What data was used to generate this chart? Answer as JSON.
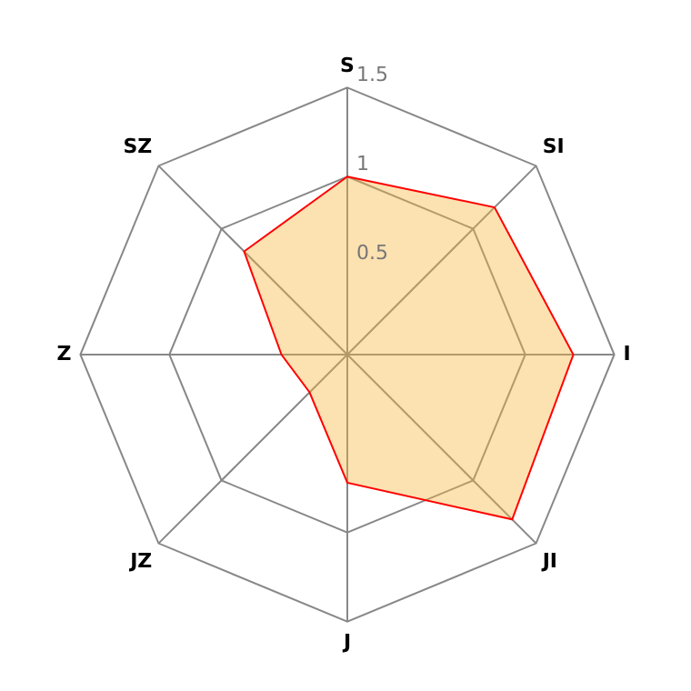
{
  "chart_data": {
    "type": "radar",
    "categories": [
      "S",
      "SI",
      "I",
      "JI",
      "J",
      "JZ",
      "Z",
      "SZ"
    ],
    "series": [
      {
        "color": "#ff0000",
        "values": [
          1.0,
          1.17,
          1.27,
          1.31,
          0.72,
          0.3,
          0.37,
          0.82
        ]
      }
    ],
    "ylim": [
      0,
      1.5
    ],
    "yticks": [
      0.5,
      1,
      1.5
    ],
    "grid": true,
    "legend": false,
    "marker": "none"
  }
}
